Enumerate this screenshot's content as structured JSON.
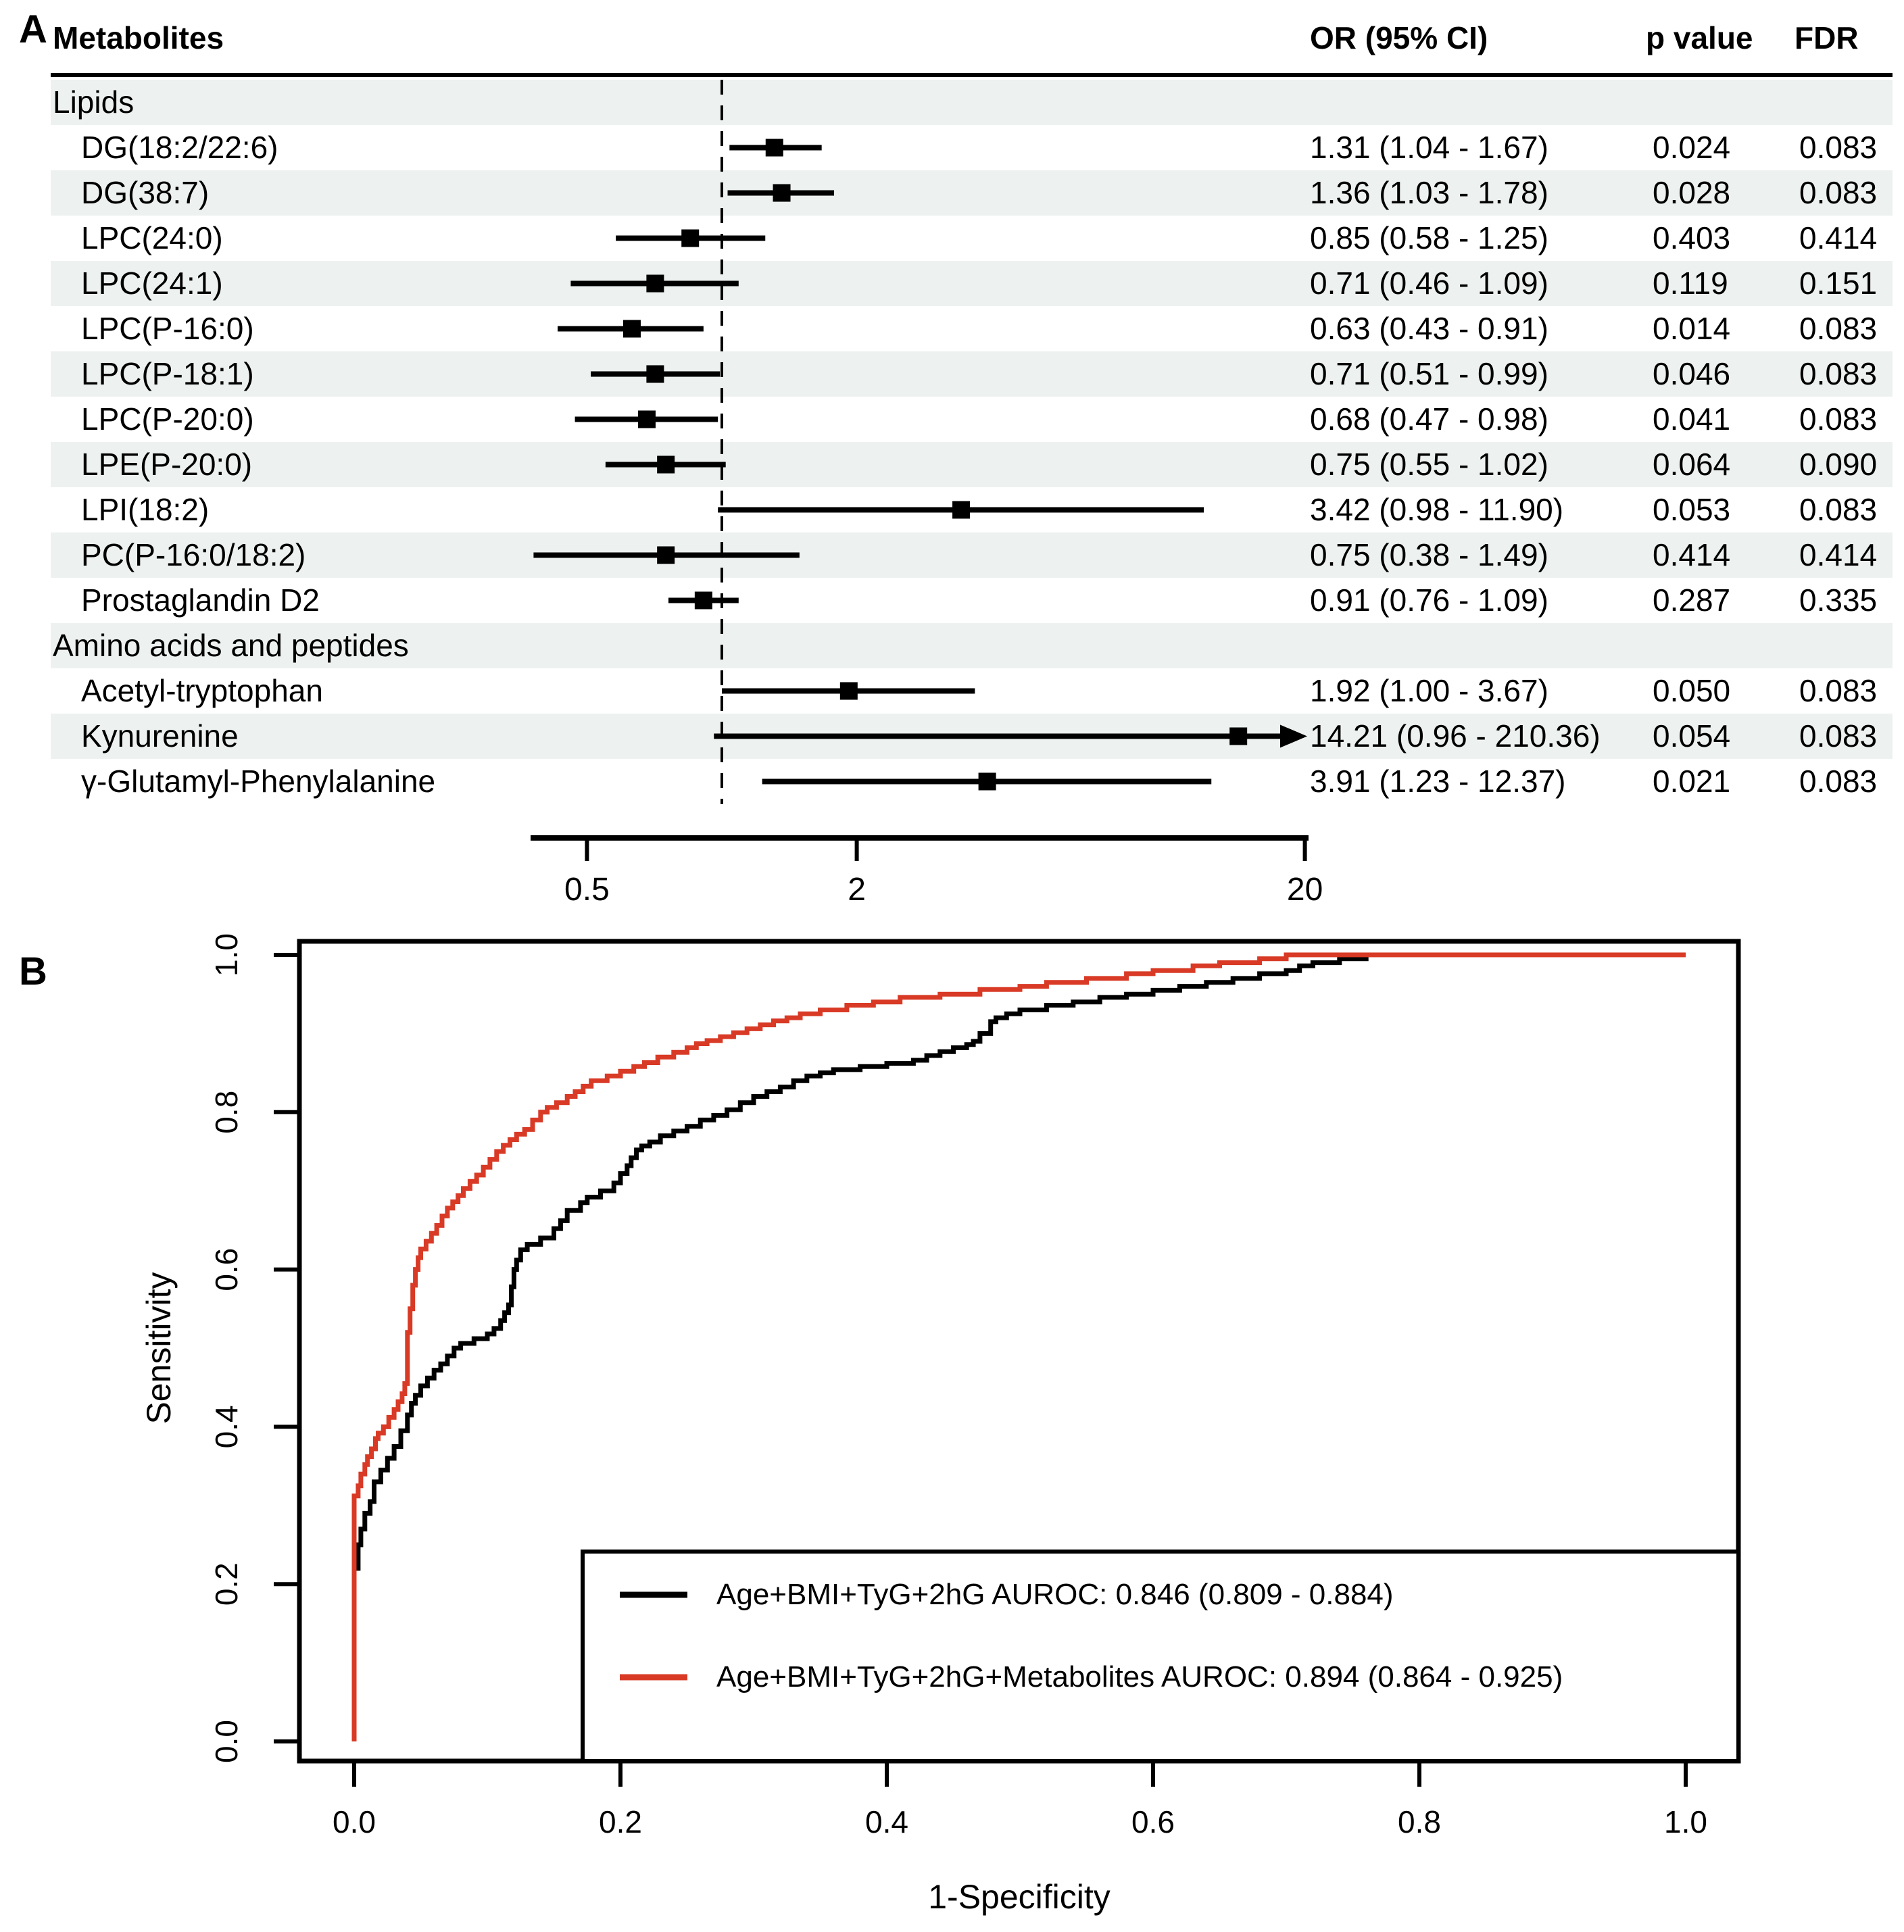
{
  "colors": {
    "roc_black": "#000000",
    "roc_red": "#D83A26",
    "stripe": "#EDF1F0",
    "text": "#000000"
  },
  "panel_a": {
    "label": "A",
    "columns": {
      "metabolites": "Metabolites",
      "or": "OR (95% CI)",
      "p": "p value",
      "fdr": "FDR"
    }
  },
  "panel_b": {
    "label": "B",
    "xlabel": "1-Specificity",
    "ylabel": "Sensitivity",
    "legend": {
      "items": [
        {
          "label": "Age+BMI+TyG+2hG AUROC: 0.846 (0.809 - 0.884)",
          "color": "#000000"
        },
        {
          "label": "Age+BMI+TyG+2hG+Metabolites AUROC: 0.894 (0.864 - 0.925)",
          "color": "#D83A26"
        }
      ]
    }
  },
  "chart_data": [
    {
      "type": "table",
      "subtype": "forest-plot",
      "title": "Forest plot of metabolite odds ratios",
      "columns": [
        "Metabolites",
        "OR (95% CI)",
        "p value",
        "FDR"
      ],
      "x_axis": {
        "scale": "log",
        "ticks": [
          {
            "v": 0.5,
            "label": "0.5"
          },
          {
            "v": 2,
            "label": "2"
          },
          {
            "v": 20,
            "label": "20"
          }
        ],
        "reference_line": 1
      },
      "rows": [
        {
          "kind": "category",
          "label": "Lipids"
        },
        {
          "kind": "item",
          "label": "DG(18:2/22:6)",
          "or": 1.31,
          "ci_low": 1.04,
          "ci_high": 1.67,
          "or_text": "1.31 (1.04 - 1.67)",
          "p": "0.024",
          "fdr": "0.083"
        },
        {
          "kind": "item",
          "label": "DG(38:7)",
          "or": 1.36,
          "ci_low": 1.03,
          "ci_high": 1.78,
          "or_text": "1.36 (1.03 - 1.78)",
          "p": "0.028",
          "fdr": "0.083"
        },
        {
          "kind": "item",
          "label": "LPC(24:0)",
          "or": 0.85,
          "ci_low": 0.58,
          "ci_high": 1.25,
          "or_text": "0.85 (0.58 - 1.25)",
          "p": "0.403",
          "fdr": "0.414"
        },
        {
          "kind": "item",
          "label": "LPC(24:1)",
          "or": 0.71,
          "ci_low": 0.46,
          "ci_high": 1.09,
          "or_text": "0.71 (0.46 - 1.09)",
          "p": "0.119",
          "fdr": "0.151"
        },
        {
          "kind": "item",
          "label": "LPC(P-16:0)",
          "or": 0.63,
          "ci_low": 0.43,
          "ci_high": 0.91,
          "or_text": "0.63 (0.43 - 0.91)",
          "p": "0.014",
          "fdr": "0.083"
        },
        {
          "kind": "item",
          "label": "LPC(P-18:1)",
          "or": 0.71,
          "ci_low": 0.51,
          "ci_high": 0.99,
          "or_text": "0.71 (0.51 - 0.99)",
          "p": "0.046",
          "fdr": "0.083"
        },
        {
          "kind": "item",
          "label": "LPC(P-20:0)",
          "or": 0.68,
          "ci_low": 0.47,
          "ci_high": 0.98,
          "or_text": "0.68 (0.47 - 0.98)",
          "p": "0.041",
          "fdr": "0.083"
        },
        {
          "kind": "item",
          "label": "LPE(P-20:0)",
          "or": 0.75,
          "ci_low": 0.55,
          "ci_high": 1.02,
          "or_text": "0.75 (0.55 - 1.02)",
          "p": "0.064",
          "fdr": "0.090"
        },
        {
          "kind": "item",
          "label": "LPI(18:2)",
          "or": 3.42,
          "ci_low": 0.98,
          "ci_high": 11.9,
          "or_text": "3.42 (0.98 - 11.90)",
          "p": "0.053",
          "fdr": "0.083"
        },
        {
          "kind": "item",
          "label": "PC(P-16:0/18:2)",
          "or": 0.75,
          "ci_low": 0.38,
          "ci_high": 1.49,
          "or_text": "0.75 (0.38 - 1.49)",
          "p": "0.414",
          "fdr": "0.414"
        },
        {
          "kind": "item",
          "label": "Prostaglandin D2",
          "or": 0.91,
          "ci_low": 0.76,
          "ci_high": 1.09,
          "or_text": "0.91 (0.76 - 1.09)",
          "p": "0.287",
          "fdr": "0.335"
        },
        {
          "kind": "category",
          "label": "Amino acids and peptides"
        },
        {
          "kind": "item",
          "label": "Acetyl-tryptophan",
          "or": 1.92,
          "ci_low": 1.0,
          "ci_high": 3.67,
          "or_text": "1.92 (1.00 - 3.67)",
          "p": "0.050",
          "fdr": "0.083"
        },
        {
          "kind": "item",
          "label": "Kynurenine",
          "or": 14.21,
          "ci_low": 0.96,
          "ci_high": 210.36,
          "or_text": "14.21 (0.96 - 210.36)",
          "p": "0.054",
          "fdr": "0.083",
          "clipped_right": true
        },
        {
          "kind": "item",
          "label": "γ-Glutamyl-Phenylalanine",
          "or": 3.91,
          "ci_low": 1.23,
          "ci_high": 12.37,
          "or_text": "3.91 (1.23 - 12.37)",
          "p": "0.021",
          "fdr": "0.083"
        }
      ]
    },
    {
      "type": "line",
      "subtype": "roc",
      "title": "ROC curves",
      "xlabel": "1-Specificity",
      "ylabel": "Sensitivity",
      "xlim": [
        0,
        1
      ],
      "ylim": [
        0,
        1
      ],
      "x_ticks": [
        {
          "v": 0.0,
          "label": "0.0"
        },
        {
          "v": 0.2,
          "label": "0.2"
        },
        {
          "v": 0.4,
          "label": "0.4"
        },
        {
          "v": 0.6,
          "label": "0.6"
        },
        {
          "v": 0.8,
          "label": "0.8"
        },
        {
          "v": 1.0,
          "label": "1.0"
        }
      ],
      "y_ticks": [
        {
          "v": 0.0,
          "label": "0.0"
        },
        {
          "v": 0.2,
          "label": "0.2"
        },
        {
          "v": 0.4,
          "label": "0.4"
        },
        {
          "v": 0.6,
          "label": "0.6"
        },
        {
          "v": 0.8,
          "label": "0.8"
        },
        {
          "v": 1.0,
          "label": "1.0"
        }
      ],
      "legend_position": "bottom-right",
      "series": [
        {
          "name": "Age+BMI+TyG+2hG",
          "auroc": 0.846,
          "auroc_ci": "0.809 - 0.884",
          "label": "Age+BMI+TyG+2hG AUROC: 0.846 (0.809 - 0.884)",
          "color": "#000000",
          "points": [
            [
              0,
              0
            ],
            [
              0,
              0.195
            ],
            [
              0.003,
              0.22
            ],
            [
              0.005,
              0.25
            ],
            [
              0.008,
              0.27
            ],
            [
              0.012,
              0.29
            ],
            [
              0.015,
              0.305
            ],
            [
              0.02,
              0.33
            ],
            [
              0.025,
              0.345
            ],
            [
              0.03,
              0.36
            ],
            [
              0.035,
              0.375
            ],
            [
              0.04,
              0.395
            ],
            [
              0.043,
              0.415
            ],
            [
              0.046,
              0.43
            ],
            [
              0.05,
              0.44
            ],
            [
              0.055,
              0.452
            ],
            [
              0.06,
              0.462
            ],
            [
              0.065,
              0.472
            ],
            [
              0.07,
              0.48
            ],
            [
              0.075,
              0.49
            ],
            [
              0.08,
              0.5
            ],
            [
              0.09,
              0.506
            ],
            [
              0.1,
              0.512
            ],
            [
              0.105,
              0.518
            ],
            [
              0.11,
              0.525
            ],
            [
              0.113,
              0.535
            ],
            [
              0.116,
              0.545
            ],
            [
              0.118,
              0.555
            ],
            [
              0.12,
              0.578
            ],
            [
              0.122,
              0.6
            ],
            [
              0.125,
              0.612
            ],
            [
              0.13,
              0.625
            ],
            [
              0.14,
              0.632
            ],
            [
              0.15,
              0.64
            ],
            [
              0.155,
              0.652
            ],
            [
              0.16,
              0.662
            ],
            [
              0.17,
              0.675
            ],
            [
              0.175,
              0.685
            ],
            [
              0.185,
              0.692
            ],
            [
              0.195,
              0.7
            ],
            [
              0.2,
              0.71
            ],
            [
              0.205,
              0.722
            ],
            [
              0.208,
              0.732
            ],
            [
              0.212,
              0.742
            ],
            [
              0.216,
              0.752
            ],
            [
              0.222,
              0.757
            ],
            [
              0.23,
              0.762
            ],
            [
              0.24,
              0.77
            ],
            [
              0.25,
              0.776
            ],
            [
              0.26,
              0.782
            ],
            [
              0.27,
              0.79
            ],
            [
              0.28,
              0.796
            ],
            [
              0.29,
              0.803
            ],
            [
              0.3,
              0.812
            ],
            [
              0.31,
              0.82
            ],
            [
              0.32,
              0.826
            ],
            [
              0.33,
              0.832
            ],
            [
              0.34,
              0.84
            ],
            [
              0.35,
              0.846
            ],
            [
              0.36,
              0.85
            ],
            [
              0.38,
              0.854
            ],
            [
              0.4,
              0.858
            ],
            [
              0.42,
              0.862
            ],
            [
              0.43,
              0.866
            ],
            [
              0.44,
              0.872
            ],
            [
              0.45,
              0.877
            ],
            [
              0.46,
              0.882
            ],
            [
              0.465,
              0.886
            ],
            [
              0.47,
              0.89
            ],
            [
              0.478,
              0.9
            ],
            [
              0.482,
              0.915
            ],
            [
              0.49,
              0.92
            ],
            [
              0.5,
              0.925
            ],
            [
              0.52,
              0.93
            ],
            [
              0.54,
              0.936
            ],
            [
              0.56,
              0.94
            ],
            [
              0.58,
              0.946
            ],
            [
              0.6,
              0.95
            ],
            [
              0.62,
              0.955
            ],
            [
              0.64,
              0.96
            ],
            [
              0.66,
              0.965
            ],
            [
              0.68,
              0.97
            ],
            [
              0.7,
              0.976
            ],
            [
              0.71,
              0.98
            ],
            [
              0.72,
              0.986
            ],
            [
              0.74,
              0.99
            ],
            [
              0.76,
              0.995
            ],
            [
              0.79,
              1
            ],
            [
              0.81,
              1
            ]
          ]
        },
        {
          "name": "Age+BMI+TyG+2hG+Metabolites",
          "auroc": 0.894,
          "auroc_ci": "0.864 - 0.925",
          "label": "Age+BMI+TyG+2hG+Metabolites AUROC: 0.894 (0.864 - 0.925)",
          "color": "#D83A26",
          "points": [
            [
              0,
              0
            ],
            [
              0,
              0.3
            ],
            [
              0.003,
              0.312
            ],
            [
              0.005,
              0.325
            ],
            [
              0.008,
              0.34
            ],
            [
              0.01,
              0.352
            ],
            [
              0.013,
              0.362
            ],
            [
              0.016,
              0.372
            ],
            [
              0.018,
              0.385
            ],
            [
              0.022,
              0.392
            ],
            [
              0.026,
              0.4
            ],
            [
              0.03,
              0.412
            ],
            [
              0.033,
              0.422
            ],
            [
              0.036,
              0.432
            ],
            [
              0.038,
              0.442
            ],
            [
              0.04,
              0.455
            ],
            [
              0.042,
              0.52
            ],
            [
              0.044,
              0.55
            ],
            [
              0.046,
              0.58
            ],
            [
              0.048,
              0.6
            ],
            [
              0.05,
              0.615
            ],
            [
              0.054,
              0.626
            ],
            [
              0.058,
              0.636
            ],
            [
              0.062,
              0.646
            ],
            [
              0.066,
              0.656
            ],
            [
              0.07,
              0.668
            ],
            [
              0.074,
              0.678
            ],
            [
              0.078,
              0.686
            ],
            [
              0.082,
              0.694
            ],
            [
              0.087,
              0.703
            ],
            [
              0.092,
              0.712
            ],
            [
              0.097,
              0.72
            ],
            [
              0.102,
              0.73
            ],
            [
              0.107,
              0.74
            ],
            [
              0.112,
              0.75
            ],
            [
              0.117,
              0.758
            ],
            [
              0.122,
              0.765
            ],
            [
              0.128,
              0.772
            ],
            [
              0.134,
              0.778
            ],
            [
              0.14,
              0.79
            ],
            [
              0.145,
              0.8
            ],
            [
              0.152,
              0.806
            ],
            [
              0.16,
              0.812
            ],
            [
              0.166,
              0.82
            ],
            [
              0.172,
              0.826
            ],
            [
              0.178,
              0.833
            ],
            [
              0.19,
              0.84
            ],
            [
              0.2,
              0.846
            ],
            [
              0.21,
              0.852
            ],
            [
              0.218,
              0.858
            ],
            [
              0.228,
              0.863
            ],
            [
              0.24,
              0.87
            ],
            [
              0.25,
              0.876
            ],
            [
              0.257,
              0.882
            ],
            [
              0.265,
              0.887
            ],
            [
              0.275,
              0.891
            ],
            [
              0.285,
              0.896
            ],
            [
              0.295,
              0.901
            ],
            [
              0.305,
              0.906
            ],
            [
              0.315,
              0.911
            ],
            [
              0.325,
              0.916
            ],
            [
              0.335,
              0.92
            ],
            [
              0.35,
              0.925
            ],
            [
              0.37,
              0.93
            ],
            [
              0.39,
              0.936
            ],
            [
              0.41,
              0.94
            ],
            [
              0.44,
              0.946
            ],
            [
              0.47,
              0.95
            ],
            [
              0.5,
              0.956
            ],
            [
              0.52,
              0.96
            ],
            [
              0.55,
              0.965
            ],
            [
              0.58,
              0.97
            ],
            [
              0.6,
              0.976
            ],
            [
              0.63,
              0.98
            ],
            [
              0.65,
              0.986
            ],
            [
              0.68,
              0.99
            ],
            [
              0.7,
              0.995
            ],
            [
              0.72,
              1
            ],
            [
              1,
              1
            ]
          ]
        }
      ]
    }
  ]
}
